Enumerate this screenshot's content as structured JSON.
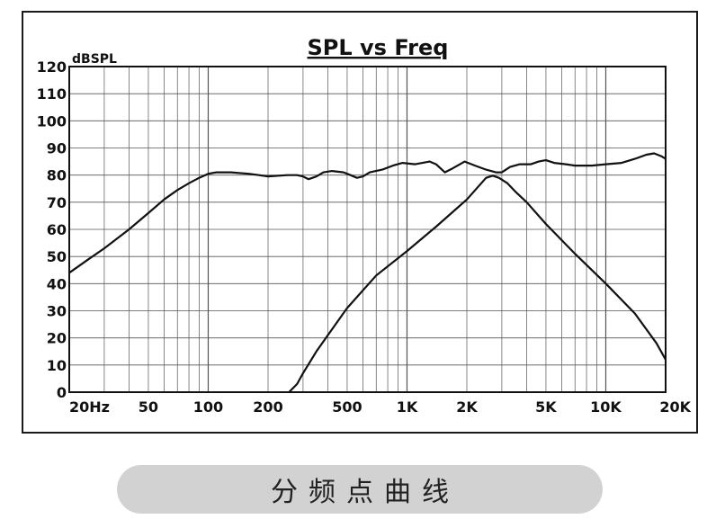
{
  "chart_data": {
    "type": "line",
    "title": "SPL vs Freq",
    "ylabel": "dBSPL",
    "xlabel": "",
    "xscale": "log",
    "xlim": [
      20,
      20000
    ],
    "ylim": [
      0,
      120
    ],
    "grid": true,
    "x_ticks": [
      {
        "value": 20,
        "label": "20Hz"
      },
      {
        "value": 50,
        "label": "50"
      },
      {
        "value": 100,
        "label": "100"
      },
      {
        "value": 200,
        "label": "200"
      },
      {
        "value": 500,
        "label": "500"
      },
      {
        "value": 1000,
        "label": "1K"
      },
      {
        "value": 2000,
        "label": "2K"
      },
      {
        "value": 5000,
        "label": "5K"
      },
      {
        "value": 10000,
        "label": "10K"
      },
      {
        "value": 20000,
        "label": "20K"
      }
    ],
    "y_ticks": [
      0,
      10,
      20,
      30,
      40,
      50,
      60,
      70,
      80,
      90,
      100,
      110,
      120
    ],
    "series": [
      {
        "color": "#111111",
        "points": [
          [
            20,
            44
          ],
          [
            25,
            49
          ],
          [
            30,
            53
          ],
          [
            40,
            60
          ],
          [
            50,
            66
          ],
          [
            60,
            71
          ],
          [
            70,
            74.5
          ],
          [
            80,
            77
          ],
          [
            90,
            79
          ],
          [
            100,
            80.5
          ],
          [
            110,
            81
          ],
          [
            130,
            81
          ],
          [
            160,
            80.5
          ],
          [
            180,
            80
          ],
          [
            200,
            79.5
          ],
          [
            250,
            80
          ],
          [
            280,
            80
          ],
          [
            300,
            79.5
          ],
          [
            320,
            78.5
          ],
          [
            350,
            79.5
          ],
          [
            380,
            81
          ],
          [
            420,
            81.5
          ],
          [
            480,
            81
          ],
          [
            520,
            80
          ],
          [
            560,
            79
          ],
          [
            600,
            79.5
          ],
          [
            650,
            81
          ],
          [
            750,
            82
          ],
          [
            850,
            83.5
          ],
          [
            950,
            84.5
          ],
          [
            1100,
            84
          ],
          [
            1300,
            85
          ],
          [
            1400,
            84
          ],
          [
            1550,
            81
          ],
          [
            1700,
            82.5
          ],
          [
            1950,
            85
          ],
          [
            2200,
            83.5
          ],
          [
            2500,
            82
          ],
          [
            2800,
            81
          ],
          [
            3000,
            81
          ],
          [
            3300,
            83
          ],
          [
            3700,
            84
          ],
          [
            4200,
            84
          ],
          [
            4600,
            85
          ],
          [
            5000,
            85.5
          ],
          [
            5500,
            84.5
          ],
          [
            6300,
            84
          ],
          [
            7000,
            83.5
          ],
          [
            8500,
            83.5
          ],
          [
            10000,
            84
          ],
          [
            12000,
            84.5
          ],
          [
            14000,
            86
          ],
          [
            16000,
            87.5
          ],
          [
            17500,
            88
          ],
          [
            19000,
            87
          ],
          [
            20000,
            86
          ]
        ]
      },
      {
        "color": "#111111",
        "points": [
          [
            255,
            0
          ],
          [
            280,
            3
          ],
          [
            300,
            7
          ],
          [
            350,
            15
          ],
          [
            400,
            21
          ],
          [
            500,
            31
          ],
          [
            700,
            43
          ],
          [
            1000,
            52
          ],
          [
            1400,
            61
          ],
          [
            2000,
            71
          ],
          [
            2300,
            76
          ],
          [
            2500,
            79
          ],
          [
            2700,
            79.8
          ],
          [
            2900,
            79
          ],
          [
            3200,
            77
          ],
          [
            3500,
            74
          ],
          [
            4000,
            70
          ],
          [
            5000,
            62
          ],
          [
            7000,
            51
          ],
          [
            10000,
            40
          ],
          [
            14000,
            29
          ],
          [
            18000,
            18
          ],
          [
            20000,
            12
          ]
        ]
      }
    ]
  },
  "caption": "分频点曲线"
}
